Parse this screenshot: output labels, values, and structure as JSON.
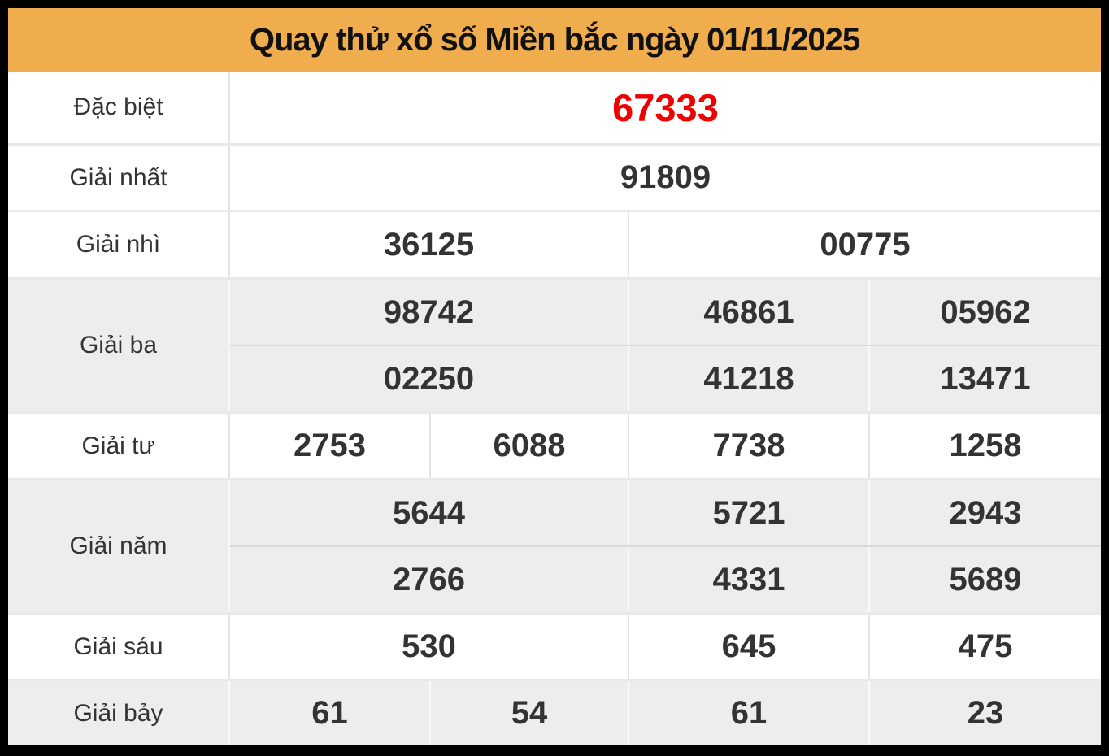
{
  "header": {
    "title": "Quay thử xổ số Miền bắc ngày 01/11/2025"
  },
  "colors": {
    "header_bg": "#f0ad4e",
    "title_text": "#111111",
    "number_text": "#333333",
    "special_number": "#ee0000",
    "shaded_row_bg": "#ededed",
    "frame": "#000000"
  },
  "table": {
    "rows": [
      {
        "label": "Đặc biệt",
        "lines": [
          [
            "67333"
          ]
        ]
      },
      {
        "label": "Giải nhất",
        "lines": [
          [
            "91809"
          ]
        ]
      },
      {
        "label": "Giải nhì",
        "lines": [
          [
            "36125",
            "00775"
          ]
        ]
      },
      {
        "label": "Giải ba",
        "lines": [
          [
            "98742",
            "46861",
            "05962"
          ],
          [
            "02250",
            "41218",
            "13471"
          ]
        ]
      },
      {
        "label": "Giải tư",
        "lines": [
          [
            "2753",
            "6088",
            "7738",
            "1258"
          ]
        ]
      },
      {
        "label": "Giải năm",
        "lines": [
          [
            "5644",
            "5721",
            "2943"
          ],
          [
            "2766",
            "4331",
            "5689"
          ]
        ]
      },
      {
        "label": "Giải sáu",
        "lines": [
          [
            "530",
            "645",
            "475"
          ]
        ]
      },
      {
        "label": "Giải bảy",
        "lines": [
          [
            "61",
            "54",
            "61",
            "23"
          ]
        ]
      }
    ]
  }
}
